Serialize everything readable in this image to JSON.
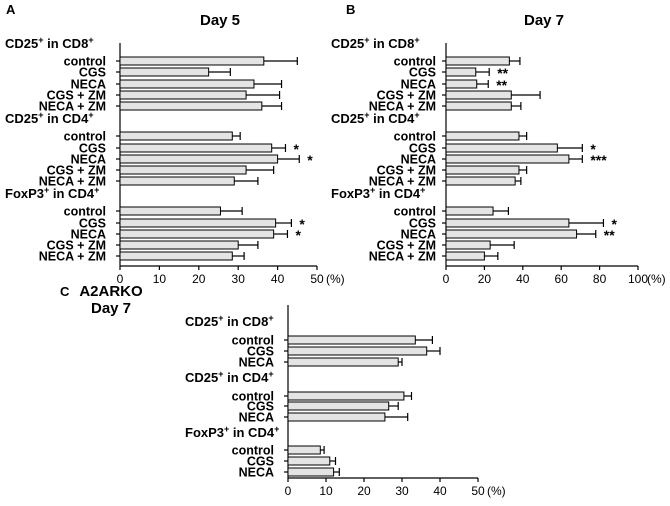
{
  "chart_data": [
    {
      "type": "bar",
      "orientation": "horizontal",
      "panel": "A",
      "title": "Day 5",
      "xlabel": "(%)",
      "xlim": [
        0,
        50
      ],
      "xticks": [
        0,
        10,
        20,
        30,
        40,
        50
      ],
      "groups": [
        {
          "label_main": "CD25",
          "label_sup1": "+",
          "label_mid": " in CD8",
          "label_sup2": "+",
          "categories": [
            "control",
            "CGS",
            "NECA",
            "CGS + ZM",
            "NECA + ZM"
          ],
          "values": [
            36.5,
            22.5,
            34,
            32,
            36
          ],
          "errors": [
            8.5,
            5.5,
            7,
            8.5,
            5
          ],
          "significance": [
            "",
            "",
            "",
            "",
            ""
          ]
        },
        {
          "label_main": "CD25",
          "label_sup1": "+",
          "label_mid": " in CD4",
          "label_sup2": "+",
          "categories": [
            "control",
            "CGS",
            "NECA",
            "CGS + ZM",
            "NECA + ZM"
          ],
          "values": [
            28.5,
            38.5,
            40,
            32,
            29
          ],
          "errors": [
            2,
            3.5,
            5.5,
            7,
            6
          ],
          "significance": [
            "",
            "*",
            "*",
            "",
            ""
          ]
        },
        {
          "label_main": "FoxP3",
          "label_sup1": "+",
          "label_mid": " in CD4",
          "label_sup2": "+",
          "categories": [
            "control",
            "CGS",
            "NECA",
            "CGS + ZM",
            "NECA + ZM"
          ],
          "values": [
            25.5,
            39.5,
            39,
            30,
            28.5
          ],
          "errors": [
            5.5,
            4,
            3.5,
            5,
            3
          ],
          "significance": [
            "",
            "*",
            "*",
            "",
            ""
          ]
        }
      ]
    },
    {
      "type": "bar",
      "orientation": "horizontal",
      "panel": "B",
      "title": "Day 7",
      "xlabel": "(%)",
      "xlim": [
        0,
        100
      ],
      "xticks": [
        0,
        20,
        40,
        60,
        80,
        100
      ],
      "groups": [
        {
          "label_main": "CD25",
          "label_sup1": "+",
          "label_mid": " in CD8",
          "label_sup2": "+",
          "categories": [
            "control",
            "CGS",
            "NECA",
            "CGS + ZM",
            "NECA + ZM"
          ],
          "values": [
            33,
            15.5,
            16,
            34,
            34
          ],
          "errors": [
            5.5,
            7,
            6,
            15,
            5
          ],
          "significance": [
            "",
            "**",
            "**",
            "",
            ""
          ]
        },
        {
          "label_main": "CD25",
          "label_sup1": "+",
          "label_mid": " in CD4",
          "label_sup2": "+",
          "categories": [
            "control",
            "CGS",
            "NECA",
            "CGS + ZM",
            "NECA + ZM"
          ],
          "values": [
            38,
            58,
            64,
            38,
            36
          ],
          "errors": [
            4,
            13,
            7,
            4,
            3
          ],
          "significance": [
            "",
            "*",
            "***",
            "",
            ""
          ]
        },
        {
          "label_main": "FoxP3",
          "label_sup1": "+",
          "label_mid": " in CD4",
          "label_sup2": "+",
          "categories": [
            "control",
            "CGS",
            "NECA",
            "CGS + ZM",
            "NECA + ZM"
          ],
          "values": [
            24.5,
            64,
            68,
            23,
            20
          ],
          "errors": [
            8,
            18,
            10,
            12.5,
            7
          ],
          "significance": [
            "",
            "*",
            "**",
            "",
            ""
          ]
        }
      ]
    },
    {
      "type": "bar",
      "orientation": "horizontal",
      "panel": "C",
      "title_line1": "A2ARKO",
      "title_line2": "Day 7",
      "xlabel": "(%)",
      "xlim": [
        0,
        50
      ],
      "xticks": [
        0,
        10,
        20,
        30,
        40,
        50
      ],
      "groups": [
        {
          "label_main": "CD25",
          "label_sup1": "+",
          "label_mid": " in CD8",
          "label_sup2": "+",
          "categories": [
            "control",
            "CGS",
            "NECA"
          ],
          "values": [
            33.5,
            36.5,
            29
          ],
          "errors": [
            4.5,
            3.5,
            1
          ],
          "significance": [
            "",
            "",
            ""
          ]
        },
        {
          "label_main": "CD25",
          "label_sup1": "+",
          "label_mid": " in CD4",
          "label_sup2": "+",
          "categories": [
            "control",
            "CGS",
            "NECA"
          ],
          "values": [
            30.5,
            26.5,
            25.5
          ],
          "errors": [
            2,
            2.5,
            6
          ],
          "significance": [
            "",
            "",
            ""
          ]
        },
        {
          "label_main": "FoxP3",
          "label_sup1": "+",
          "label_mid": " in CD4",
          "label_sup2": "+",
          "categories": [
            "control",
            "CGS",
            "NECA"
          ],
          "values": [
            8.5,
            11,
            12
          ],
          "errors": [
            1,
            1.5,
            1.5
          ],
          "significance": [
            "",
            "",
            ""
          ]
        }
      ]
    }
  ]
}
